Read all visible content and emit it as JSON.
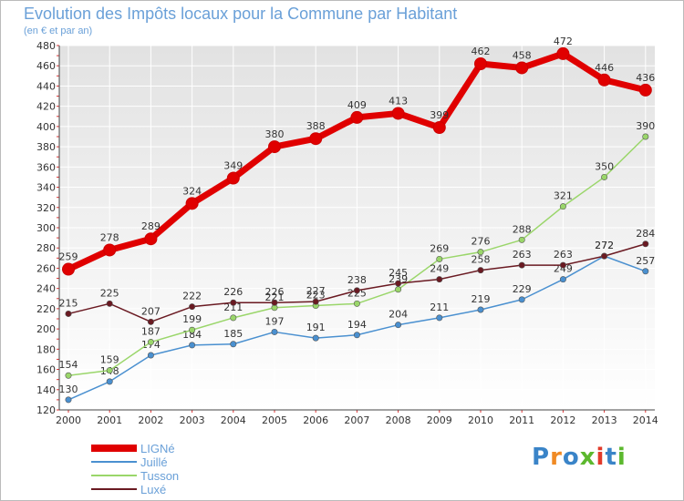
{
  "title": "Evolution des Impôts locaux pour la Commune par Habitant",
  "subtitle": "(en € et par an)",
  "logo": {
    "letters": [
      "P",
      "r",
      "o",
      "x",
      "i",
      "t",
      "i"
    ],
    "colors": [
      "#3a84c8",
      "#f08a24",
      "#3a84c8",
      "#5cb82e",
      "#e23a2a",
      "#3a84c8",
      "#5cb82e"
    ]
  },
  "chart_data": {
    "type": "line",
    "title": "Evolution des Impôts locaux pour la Commune par Habitant",
    "subtitle": "(en € et par an)",
    "x": [
      "2000",
      "2001",
      "2002",
      "2003",
      "2004",
      "2005",
      "2006",
      "2007",
      "2008",
      "2009",
      "2010",
      "2011",
      "2012",
      "2013",
      "2014"
    ],
    "ylim": [
      120,
      480
    ],
    "yticks": [
      120,
      140,
      160,
      180,
      200,
      220,
      240,
      260,
      280,
      300,
      320,
      340,
      360,
      380,
      400,
      420,
      440,
      460,
      480
    ],
    "grid": true,
    "legend_position": "bottom-left",
    "series": [
      {
        "name": "LIGNé",
        "color": "#e00000",
        "values": [
          259,
          278,
          289,
          324,
          349,
          380,
          388,
          409,
          413,
          399,
          462,
          458,
          472,
          446,
          436
        ]
      },
      {
        "name": "Juillé",
        "color": "#4a90d0",
        "values": [
          130,
          148,
          174,
          184,
          185,
          197,
          191,
          194,
          204,
          211,
          219,
          229,
          249,
          272,
          257
        ]
      },
      {
        "name": "Tusson",
        "color": "#9ad66a",
        "values": [
          154,
          159,
          187,
          199,
          211,
          221,
          223,
          225,
          239,
          269,
          276,
          288,
          321,
          350,
          390
        ]
      },
      {
        "name": "Luxé",
        "color": "#6a1a22",
        "values": [
          215,
          225,
          207,
          222,
          226,
          226,
          227,
          238,
          245,
          249,
          258,
          263,
          263,
          272,
          284
        ]
      }
    ]
  }
}
